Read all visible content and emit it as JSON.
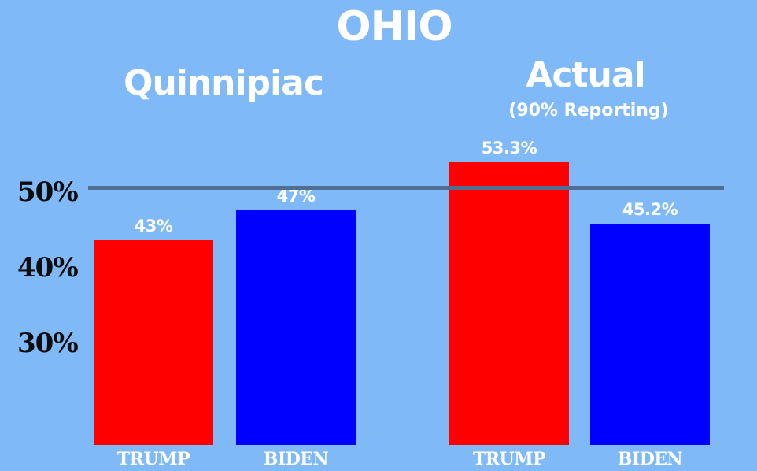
{
  "chart_data": {
    "type": "bar",
    "title": "OHIO",
    "y_ticks": [
      "50%",
      "40%",
      "30%"
    ],
    "y_tick_values": [
      50,
      40,
      30
    ],
    "reference_line": 50,
    "groups": [
      {
        "title": "Quinnipiac",
        "subtitle": "",
        "bars": [
          {
            "category": "TRUMP",
            "value": 43,
            "label": "43%",
            "color": "#ff0000"
          },
          {
            "category": "BIDEN",
            "value": 47,
            "label": "47%",
            "color": "#0000ff"
          }
        ]
      },
      {
        "title": "Actual",
        "subtitle": "(90% Reporting)",
        "bars": [
          {
            "category": "TRUMP",
            "value": 53.3,
            "label": "53.3%",
            "color": "#ff0000"
          },
          {
            "category": "BIDEN",
            "value": 45.2,
            "label": "45.2%",
            "color": "#0000ff"
          }
        ]
      }
    ]
  },
  "colors": {
    "background": "#80b9f7",
    "trump": "#ff0000",
    "biden": "#0000ff",
    "reference_line": "#4f6e91",
    "text": "#ffffff",
    "tick_text": "#0d0d0d"
  }
}
